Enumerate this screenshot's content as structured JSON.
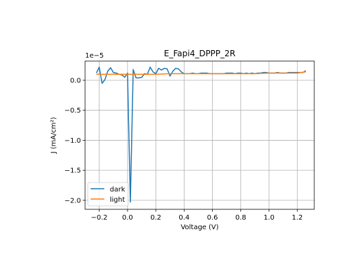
{
  "chart_data": {
    "type": "line",
    "title": "E_Fapi4_DPPP_2R",
    "xlabel": "Voltage (V)",
    "ylabel": "J (mA/cm²)",
    "y_offset_label": "1e−5",
    "xlim": [
      -0.3,
      1.32
    ],
    "ylim": [
      -2.15,
      0.32
    ],
    "grid": true,
    "legend_position": "lower-left",
    "x_ticks": [
      -0.2,
      0.0,
      0.2,
      0.4,
      0.6,
      0.8,
      1.0,
      1.2
    ],
    "x_tick_labels": [
      "−0.2",
      "0.0",
      "0.2",
      "0.4",
      "0.6",
      "0.8",
      "1.0",
      "1.2"
    ],
    "y_ticks": [
      0.0,
      -0.5,
      -1.0,
      -1.5,
      -2.0
    ],
    "y_tick_labels": [
      "0.0",
      "−0.5",
      "−1.0",
      "−1.5",
      "−2.0"
    ],
    "series": [
      {
        "name": "dark",
        "color": "#1f77b4",
        "x": [
          -0.22,
          -0.2,
          -0.18,
          -0.16,
          -0.14,
          -0.12,
          -0.1,
          -0.08,
          -0.06,
          -0.04,
          -0.02,
          0.0,
          0.02,
          0.04,
          0.06,
          0.08,
          0.1,
          0.12,
          0.14,
          0.16,
          0.18,
          0.2,
          0.22,
          0.24,
          0.26,
          0.28,
          0.3,
          0.32,
          0.34,
          0.36,
          0.38,
          0.4,
          0.42,
          0.44,
          0.46,
          0.48,
          0.5,
          0.52,
          0.54,
          0.56,
          0.58,
          0.6,
          0.62,
          0.64,
          0.66,
          0.68,
          0.7,
          0.72,
          0.74,
          0.76,
          0.78,
          0.8,
          0.82,
          0.84,
          0.86,
          0.88,
          0.9,
          0.92,
          0.94,
          0.96,
          0.98,
          1.0,
          1.02,
          1.04,
          1.06,
          1.08,
          1.1,
          1.12,
          1.14,
          1.16,
          1.18,
          1.2,
          1.22,
          1.24,
          1.26
        ],
        "y": [
          0.12,
          0.22,
          -0.05,
          0.01,
          0.15,
          0.21,
          0.13,
          0.12,
          0.1,
          0.09,
          0.05,
          0.12,
          -2.03,
          0.18,
          0.04,
          0.04,
          0.05,
          0.11,
          0.1,
          0.22,
          0.14,
          0.11,
          0.2,
          0.17,
          0.2,
          0.19,
          0.07,
          0.15,
          0.2,
          0.19,
          0.14,
          0.11,
          0.11,
          0.11,
          0.12,
          0.11,
          0.11,
          0.12,
          0.12,
          0.12,
          0.11,
          0.11,
          0.11,
          0.11,
          0.11,
          0.11,
          0.12,
          0.12,
          0.12,
          0.11,
          0.12,
          0.12,
          0.11,
          0.12,
          0.11,
          0.12,
          0.11,
          0.12,
          0.12,
          0.13,
          0.13,
          0.12,
          0.12,
          0.12,
          0.13,
          0.12,
          0.12,
          0.12,
          0.13,
          0.13,
          0.13,
          0.13,
          0.13,
          0.13,
          0.16
        ]
      },
      {
        "name": "light",
        "color": "#ff7f0e",
        "x": [
          -0.22,
          -0.1,
          0.0,
          0.1,
          0.2,
          0.3,
          0.4,
          0.5,
          0.6,
          0.7,
          0.8,
          0.9,
          1.0,
          1.1,
          1.2,
          1.26
        ],
        "y": [
          0.1,
          0.1,
          0.1,
          0.1,
          0.1,
          0.11,
          0.11,
          0.11,
          0.11,
          0.11,
          0.11,
          0.11,
          0.12,
          0.12,
          0.12,
          0.14
        ]
      }
    ]
  }
}
